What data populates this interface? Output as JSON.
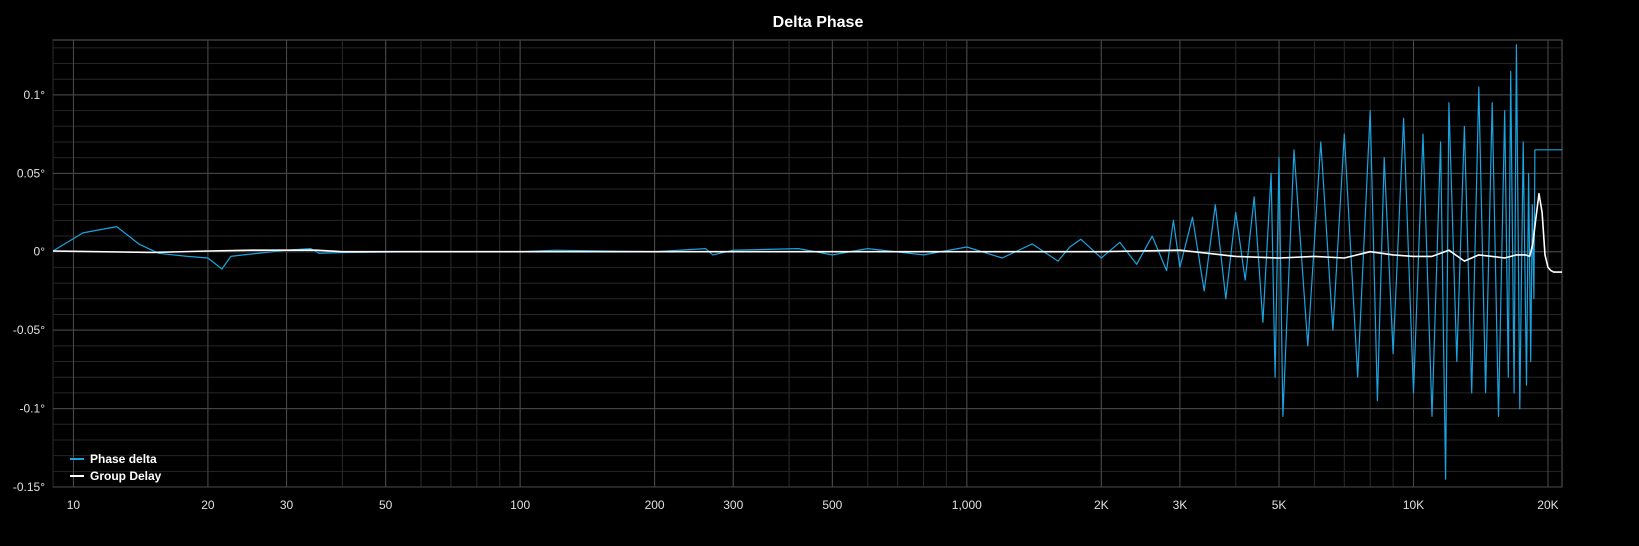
{
  "chart_data": {
    "type": "line",
    "title": "Delta Phase",
    "x_scale": "log",
    "x_range": [
      9,
      21500
    ],
    "y_range": [
      -0.15,
      0.135
    ],
    "grid": true,
    "legend_position": "bottom-left",
    "x_ticks": [
      {
        "value": 10,
        "label": "10"
      },
      {
        "value": 20,
        "label": "20"
      },
      {
        "value": 30,
        "label": "30"
      },
      {
        "value": 50,
        "label": "50"
      },
      {
        "value": 100,
        "label": "100"
      },
      {
        "value": 200,
        "label": "200"
      },
      {
        "value": 300,
        "label": "300"
      },
      {
        "value": 500,
        "label": "500"
      },
      {
        "value": 1000,
        "label": "1,000"
      },
      {
        "value": 2000,
        "label": "2K"
      },
      {
        "value": 3000,
        "label": "3K"
      },
      {
        "value": 5000,
        "label": "5K"
      },
      {
        "value": 10000,
        "label": "10K"
      },
      {
        "value": 20000,
        "label": "20K"
      }
    ],
    "y_ticks": [
      {
        "value": 0.1,
        "label": "0.1°"
      },
      {
        "value": 0.05,
        "label": "0.05°"
      },
      {
        "value": 0,
        "label": "0°"
      },
      {
        "value": -0.05,
        "label": "-0.05°"
      },
      {
        "value": -0.1,
        "label": "-0.1°"
      },
      {
        "value": -0.15,
        "label": "-0.15°"
      }
    ],
    "series": [
      {
        "name": "Phase delta",
        "color": "#1aa3e0",
        "x": [
          9,
          10.5,
          12.5,
          14,
          15.5,
          18,
          20,
          21.5,
          22.5,
          24,
          30,
          34,
          35.5,
          40,
          60,
          100,
          120,
          200,
          260,
          270,
          300,
          420,
          500,
          600,
          800,
          1000,
          1200,
          1400,
          1600,
          1700,
          1800,
          2000,
          2200,
          2400,
          2600,
          2800,
          2900,
          3000,
          3200,
          3400,
          3600,
          3800,
          4000,
          4200,
          4400,
          4600,
          4800,
          4900,
          5000,
          5100,
          5400,
          5800,
          6200,
          6600,
          7000,
          7500,
          8000,
          8300,
          8600,
          9000,
          9500,
          10000,
          10500,
          11000,
          11500,
          11800,
          12000,
          12500,
          13000,
          13500,
          14000,
          14500,
          15000,
          15500,
          16000,
          16300,
          16500,
          16800,
          17000,
          17300,
          17600,
          17900,
          18100,
          18300,
          18450,
          18600,
          18700,
          19500,
          20500,
          21500
        ],
        "y": [
          0.0005,
          0.012,
          0.016,
          0.005,
          -0.001,
          -0.003,
          -0.004,
          -0.011,
          -0.003,
          -0.002,
          0.001,
          0.002,
          -0.001,
          -0.0005,
          0,
          0,
          0.001,
          0,
          0.002,
          -0.002,
          0.001,
          0.002,
          -0.002,
          0.002,
          -0.002,
          0.003,
          -0.004,
          0.005,
          -0.006,
          0.003,
          0.008,
          -0.004,
          0.006,
          -0.008,
          0.01,
          -0.012,
          0.02,
          -0.01,
          0.022,
          -0.025,
          0.03,
          -0.03,
          0.025,
          -0.018,
          0.035,
          -0.045,
          0.05,
          -0.08,
          0.06,
          -0.105,
          0.065,
          -0.06,
          0.07,
          -0.05,
          0.075,
          -0.08,
          0.09,
          -0.095,
          0.06,
          -0.065,
          0.085,
          -0.09,
          0.075,
          -0.105,
          0.07,
          -0.145,
          0.095,
          -0.07,
          0.08,
          -0.09,
          0.105,
          -0.09,
          0.095,
          -0.105,
          0.09,
          -0.08,
          0.115,
          -0.09,
          0.132,
          -0.1,
          0.07,
          -0.085,
          0.05,
          -0.07,
          0.03,
          -0.03,
          0.065,
          0.065,
          0.065,
          0.065
        ]
      },
      {
        "name": "Group Delay",
        "color": "#ffffff",
        "x": [
          9,
          10,
          15,
          20,
          25,
          35,
          40,
          50,
          100,
          200,
          500,
          1000,
          2000,
          3000,
          4000,
          5000,
          6000,
          7000,
          8000,
          9000,
          10000,
          11000,
          12000,
          13000,
          14000,
          15000,
          16000,
          17000,
          17800,
          18200,
          18500,
          18800,
          19100,
          19400,
          19700,
          20000,
          20300,
          20600,
          21000,
          21500
        ],
        "y": [
          0.0005,
          0.0003,
          -0.0005,
          0.0005,
          0.001,
          0.001,
          0,
          0,
          0,
          0,
          0,
          0,
          0,
          0.001,
          -0.003,
          -0.004,
          -0.003,
          -0.004,
          0,
          -0.002,
          -0.003,
          -0.003,
          0.001,
          -0.006,
          -0.002,
          -0.003,
          -0.004,
          -0.002,
          -0.002,
          -0.003,
          0.005,
          0.022,
          0.037,
          0.025,
          -0.002,
          -0.01,
          -0.012,
          -0.013,
          -0.013,
          -0.013
        ]
      }
    ]
  }
}
